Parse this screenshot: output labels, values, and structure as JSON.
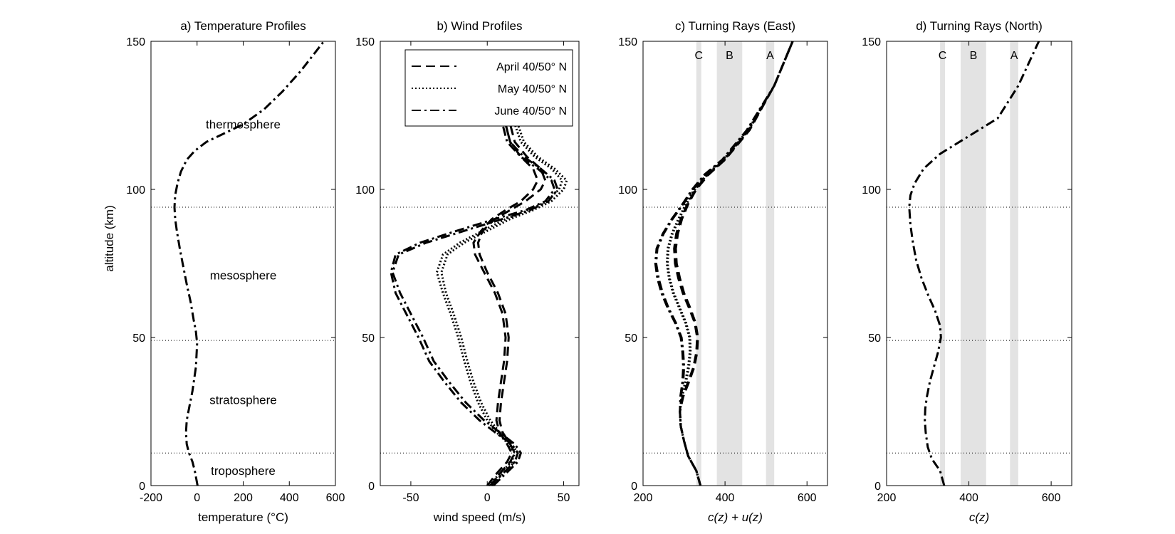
{
  "figure": {
    "ylabel": "altitude (km)"
  },
  "chart_data": [
    {
      "type": "line",
      "title": "a) Temperature Profiles",
      "xlabel": "temperature (°C)",
      "xlim": [
        -200,
        600
      ],
      "ylim": [
        0,
        150
      ],
      "xticks": [
        -200,
        0,
        200,
        400,
        600
      ],
      "yticks": [
        0,
        50,
        100,
        150
      ],
      "reference_lines_y": [
        11,
        49,
        94
      ],
      "annotations": [
        {
          "text": "thermosphere",
          "x": 200,
          "y": 122
        },
        {
          "text": "mesosphere",
          "x": 200,
          "y": 71
        },
        {
          "text": "stratosphere",
          "x": 200,
          "y": 29
        },
        {
          "text": "troposphere",
          "x": 200,
          "y": 5
        }
      ],
      "series": [
        {
          "style": "dashdot",
          "x": [
            2,
            -10,
            -20,
            -35,
            -45,
            -48,
            -45,
            -35,
            -20,
            -5,
            0,
            -5,
            -15,
            -28,
            -45,
            -60,
            -75,
            -88,
            -95,
            -98,
            -95,
            -85,
            -70,
            -45,
            -10,
            40,
            120,
            200,
            290,
            370,
            450,
            500,
            550
          ],
          "y": [
            0,
            5,
            8,
            11,
            14,
            18,
            22,
            26,
            32,
            40,
            48,
            52,
            56,
            62,
            68,
            74,
            80,
            86,
            90,
            94,
            98,
            102,
            106,
            110,
            113,
            116,
            119,
            122,
            127,
            133,
            140,
            145,
            150
          ]
        }
      ]
    },
    {
      "type": "line",
      "title": "b) Wind Profiles",
      "xlabel": "wind speed (m/s)",
      "xlim": [
        -70,
        60
      ],
      "ylim": [
        0,
        150
      ],
      "xticks": [
        -50,
        0,
        50
      ],
      "yticks": [
        0,
        50,
        100,
        150
      ],
      "reference_lines_y": [
        11,
        94
      ],
      "legend": "top-left",
      "series": [
        {
          "name": "April 40/50° N",
          "style": "dashed",
          "x": [
            2,
            8,
            15,
            18,
            15,
            10,
            8,
            9,
            11,
            13,
            14,
            12,
            7,
            0,
            -5,
            -6,
            -3,
            5,
            15,
            25,
            35,
            38,
            35,
            26,
            18,
            15
          ],
          "y": [
            0,
            4,
            8,
            11,
            14,
            18,
            22,
            28,
            35,
            42,
            50,
            58,
            65,
            72,
            78,
            82,
            86,
            90,
            93,
            96,
            100,
            103,
            107,
            111,
            116,
            122
          ]
        },
        {
          "name": "April 40/50° N",
          "style": "dashed",
          "x": [
            0,
            6,
            13,
            16,
            13,
            8,
            6,
            7,
            9,
            11,
            12,
            10,
            5,
            -2,
            -8,
            -9,
            -4,
            3,
            12,
            22,
            30,
            33,
            30,
            22,
            15,
            12
          ],
          "y": [
            0,
            4,
            8,
            11,
            14,
            18,
            22,
            28,
            35,
            42,
            50,
            58,
            65,
            72,
            78,
            82,
            86,
            90,
            93,
            96,
            100,
            103,
            107,
            111,
            116,
            122
          ]
        },
        {
          "name": "May 40/50° N",
          "style": "dotted",
          "x": [
            3,
            10,
            18,
            20,
            16,
            8,
            2,
            -4,
            -9,
            -13,
            -17,
            -22,
            -27,
            -30,
            -26,
            -15,
            0,
            15,
            30,
            42,
            50,
            52,
            44,
            33,
            24,
            20
          ],
          "y": [
            0,
            4,
            8,
            11,
            14,
            18,
            22,
            28,
            35,
            42,
            50,
            58,
            65,
            72,
            78,
            82,
            86,
            90,
            93,
            96,
            100,
            103,
            107,
            111,
            116,
            122
          ]
        },
        {
          "name": "May 40/50° N",
          "style": "dotted",
          "x": [
            1,
            8,
            16,
            18,
            14,
            6,
            0,
            -6,
            -11,
            -15,
            -19,
            -24,
            -29,
            -33,
            -29,
            -18,
            -3,
            12,
            27,
            39,
            47,
            49,
            42,
            31,
            22,
            18
          ],
          "y": [
            0,
            4,
            8,
            11,
            14,
            18,
            22,
            28,
            35,
            42,
            50,
            58,
            65,
            72,
            78,
            82,
            86,
            90,
            93,
            96,
            100,
            103,
            107,
            111,
            116,
            122
          ]
        },
        {
          "name": "June 40/50° N",
          "style": "dashdot",
          "x": [
            4,
            12,
            20,
            22,
            18,
            8,
            -2,
            -14,
            -25,
            -35,
            -42,
            -50,
            -57,
            -62,
            -58,
            -40,
            -15,
            10,
            28,
            40,
            46,
            44,
            35,
            24,
            15,
            12
          ],
          "y": [
            0,
            4,
            8,
            11,
            14,
            18,
            22,
            28,
            35,
            42,
            50,
            58,
            65,
            72,
            78,
            82,
            86,
            90,
            93,
            96,
            100,
            103,
            107,
            111,
            116,
            122
          ]
        },
        {
          "name": "June 40/50° N",
          "style": "dashdot",
          "x": [
            2,
            10,
            18,
            20,
            16,
            5,
            -5,
            -17,
            -28,
            -38,
            -45,
            -53,
            -60,
            -63,
            -60,
            -44,
            -20,
            5,
            25,
            38,
            44,
            42,
            33,
            22,
            13,
            10
          ],
          "y": [
            0,
            4,
            8,
            11,
            14,
            18,
            22,
            28,
            35,
            42,
            50,
            58,
            65,
            72,
            78,
            82,
            86,
            90,
            93,
            96,
            100,
            103,
            107,
            111,
            116,
            122
          ]
        }
      ],
      "legend_entries": [
        {
          "label": "April 40/50° N",
          "style": "dashed"
        },
        {
          "label": "May 40/50° N",
          "style": "dotted"
        },
        {
          "label": "June 40/50° N",
          "style": "dashdot"
        }
      ]
    },
    {
      "type": "line",
      "title": "c) Turning Rays (East)",
      "xlabel": "c(z) + u(z)",
      "xlim": [
        200,
        650
      ],
      "ylim": [
        0,
        150
      ],
      "xticks": [
        200,
        400,
        600
      ],
      "yticks": [
        0,
        50,
        100,
        150
      ],
      "reference_lines_y": [
        11,
        94
      ],
      "bands": [
        {
          "label": "C",
          "x0": 330,
          "x1": 342
        },
        {
          "label": "B",
          "x0": 380,
          "x1": 442
        },
        {
          "label": "A",
          "x0": 500,
          "x1": 520
        }
      ],
      "series": [
        {
          "style": "dashed",
          "x": [
            340,
            330,
            310,
            300,
            292,
            290,
            298,
            312,
            325,
            332,
            334,
            328,
            315,
            300,
            290,
            282,
            280,
            285,
            295,
            310,
            330,
            360,
            400,
            460,
            520,
            565
          ],
          "y": [
            0,
            5,
            10,
            15,
            20,
            25,
            30,
            35,
            40,
            45,
            50,
            55,
            60,
            65,
            70,
            75,
            80,
            85,
            90,
            95,
            100,
            105,
            110,
            120,
            135,
            150
          ]
        },
        {
          "style": "dashed",
          "x": [
            340,
            330,
            310,
            300,
            292,
            290,
            296,
            310,
            323,
            330,
            332,
            326,
            312,
            297,
            286,
            278,
            276,
            281,
            292,
            308,
            328,
            358,
            398,
            458,
            520,
            565
          ],
          "y": [
            0,
            5,
            10,
            15,
            20,
            25,
            30,
            35,
            40,
            45,
            50,
            55,
            60,
            65,
            70,
            75,
            80,
            85,
            90,
            95,
            100,
            105,
            110,
            120,
            135,
            150
          ]
        },
        {
          "style": "dotted",
          "x": [
            340,
            330,
            310,
            300,
            292,
            290,
            295,
            305,
            312,
            316,
            315,
            305,
            290,
            275,
            265,
            260,
            262,
            272,
            288,
            306,
            327,
            357,
            398,
            458,
            520,
            565
          ],
          "y": [
            0,
            5,
            10,
            15,
            20,
            25,
            30,
            35,
            40,
            45,
            50,
            55,
            60,
            65,
            70,
            75,
            80,
            85,
            90,
            95,
            100,
            105,
            110,
            120,
            135,
            150
          ]
        },
        {
          "style": "dotted",
          "x": [
            340,
            330,
            310,
            300,
            292,
            290,
            294,
            303,
            310,
            314,
            313,
            303,
            288,
            273,
            263,
            258,
            260,
            270,
            286,
            304,
            325,
            355,
            396,
            456,
            520,
            565
          ],
          "y": [
            0,
            5,
            10,
            15,
            20,
            25,
            30,
            35,
            40,
            45,
            50,
            55,
            60,
            65,
            70,
            75,
            80,
            85,
            90,
            95,
            100,
            105,
            110,
            120,
            135,
            150
          ]
        },
        {
          "style": "dashdot",
          "x": [
            340,
            330,
            310,
            300,
            292,
            290,
            292,
            298,
            300,
            298,
            294,
            280,
            262,
            248,
            238,
            232,
            235,
            250,
            272,
            298,
            322,
            352,
            395,
            455,
            520,
            565
          ],
          "y": [
            0,
            5,
            10,
            15,
            20,
            25,
            30,
            35,
            40,
            45,
            50,
            55,
            60,
            65,
            70,
            75,
            80,
            85,
            90,
            95,
            100,
            105,
            110,
            120,
            135,
            150
          ]
        },
        {
          "style": "dashdot",
          "x": [
            340,
            330,
            310,
            300,
            292,
            290,
            291,
            296,
            298,
            296,
            292,
            278,
            260,
            245,
            235,
            230,
            233,
            248,
            270,
            296,
            320,
            350,
            393,
            453,
            520,
            565
          ],
          "y": [
            0,
            5,
            10,
            15,
            20,
            25,
            30,
            35,
            40,
            45,
            50,
            55,
            60,
            65,
            70,
            75,
            80,
            85,
            90,
            95,
            100,
            105,
            110,
            120,
            135,
            150
          ]
        }
      ]
    },
    {
      "type": "line",
      "title": "d) Turning Rays (North)",
      "xlabel": "c(z)",
      "xlim": [
        200,
        650
      ],
      "ylim": [
        0,
        150
      ],
      "xticks": [
        200,
        400,
        600
      ],
      "yticks": [
        0,
        50,
        100,
        150
      ],
      "reference_lines_y": [
        11,
        49,
        94
      ],
      "bands": [
        {
          "label": "C",
          "x0": 330,
          "x1": 342
        },
        {
          "label": "B",
          "x0": 380,
          "x1": 442
        },
        {
          "label": "A",
          "x0": 500,
          "x1": 520
        }
      ],
      "series": [
        {
          "style": "dashdot",
          "x": [
            340,
            330,
            310,
            300,
            295,
            293,
            294,
            298,
            305,
            315,
            325,
            332,
            330,
            318,
            302,
            285,
            272,
            264,
            258,
            255,
            258,
            268,
            290,
            330,
            400,
            470,
            520,
            570
          ],
          "y": [
            0,
            5,
            9,
            13,
            18,
            22,
            26,
            30,
            35,
            40,
            45,
            50,
            54,
            59,
            64,
            70,
            76,
            82,
            88,
            94,
            98,
            102,
            107,
            112,
            118,
            124,
            135,
            150
          ]
        }
      ]
    }
  ]
}
